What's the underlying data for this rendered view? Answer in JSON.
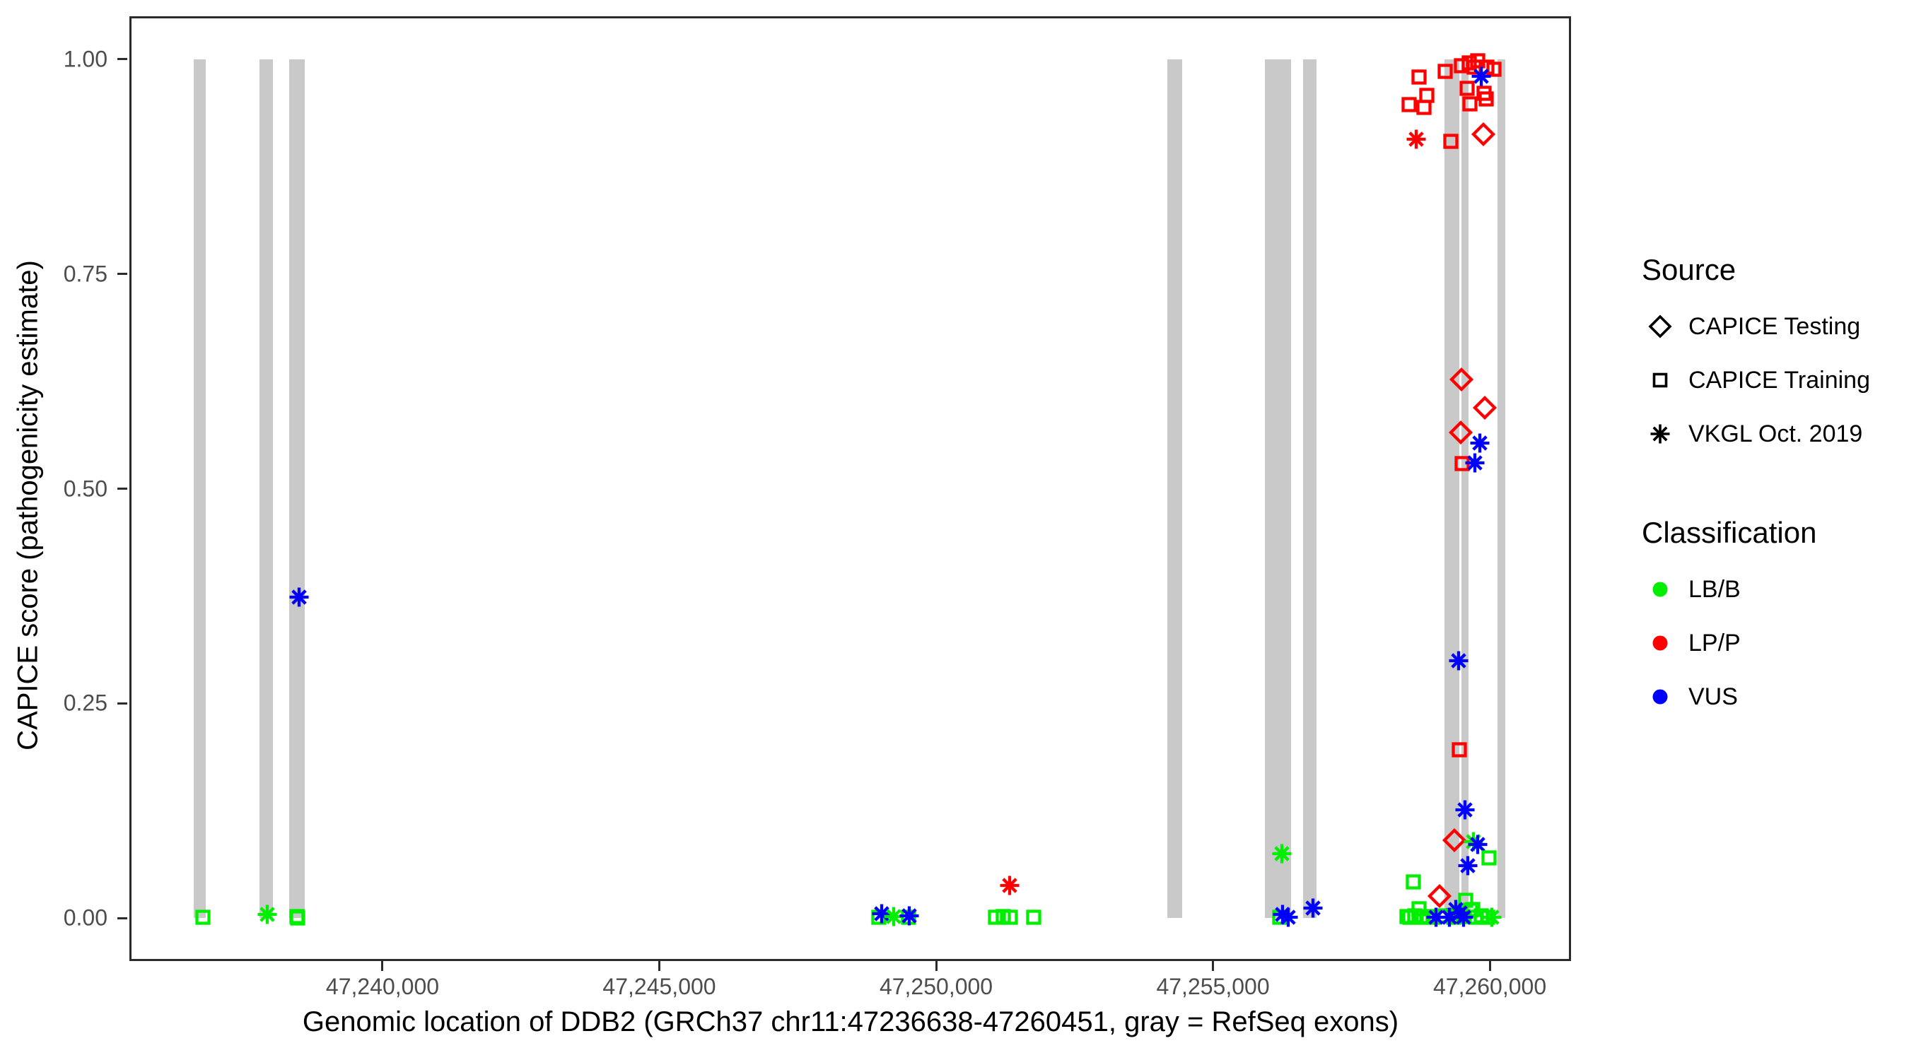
{
  "chart_data": {
    "type": "scatter",
    "title": "",
    "xlabel": "Genomic location of DDB2 (GRCh37 chr11:47236638-47260451, gray = RefSeq exons)",
    "ylabel": "CAPICE score (pathogenicity estimate)",
    "x_domain": [
      47235428,
      47261468
    ],
    "y_domain": [
      -0.05,
      1.05
    ],
    "grid": false,
    "x_ticks": [
      {
        "value": 47240000,
        "label": "47,240,000"
      },
      {
        "value": 47245000,
        "label": "47,245,000"
      },
      {
        "value": 47250000,
        "label": "47,250,000"
      },
      {
        "value": 47255000,
        "label": "47,255,000"
      },
      {
        "value": 47260000,
        "label": "47,260,000"
      }
    ],
    "y_ticks": [
      {
        "value": 0.0,
        "label": "0.00"
      },
      {
        "value": 0.25,
        "label": "0.25"
      },
      {
        "value": 0.5,
        "label": "0.50"
      },
      {
        "value": 0.75,
        "label": "0.75"
      },
      {
        "value": 1.0,
        "label": "1.00"
      }
    ],
    "exon_color": "#c9c9c9",
    "exons": [
      {
        "start": 47236590,
        "end": 47236807
      },
      {
        "start": 47237778,
        "end": 47238020
      },
      {
        "start": 47238314,
        "end": 47238595
      },
      {
        "start": 47254174,
        "end": 47254442
      },
      {
        "start": 47255937,
        "end": 47256409
      },
      {
        "start": 47256626,
        "end": 47256869
      },
      {
        "start": 47259181,
        "end": 47259449
      },
      {
        "start": 47259487,
        "end": 47259615
      },
      {
        "start": 47260138,
        "end": 47260278
      }
    ],
    "points": [
      {
        "pos": 47236757,
        "score": 0.001,
        "source": "training",
        "cls": "LB/B"
      },
      {
        "pos": 47237919,
        "score": 0.004,
        "source": "vkgl",
        "cls": "LB/B"
      },
      {
        "pos": 47238455,
        "score": 0.002,
        "source": "training",
        "cls": "LB/B"
      },
      {
        "pos": 47238470,
        "score": 0.0,
        "source": "training",
        "cls": "LB/B"
      },
      {
        "pos": 47238493,
        "score": 0.374,
        "source": "vkgl",
        "cls": "VUS"
      },
      {
        "pos": 47248964,
        "score": 0.001,
        "source": "training",
        "cls": "LB/B"
      },
      {
        "pos": 47249015,
        "score": 0.005,
        "source": "vkgl",
        "cls": "VUS"
      },
      {
        "pos": 47249232,
        "score": 0.002,
        "source": "vkgl",
        "cls": "LB/B"
      },
      {
        "pos": 47249500,
        "score": 0.001,
        "source": "training",
        "cls": "LB/B"
      },
      {
        "pos": 47249513,
        "score": 0.003,
        "source": "vkgl",
        "cls": "VUS"
      },
      {
        "pos": 47251071,
        "score": 0.001,
        "source": "training",
        "cls": "LB/B"
      },
      {
        "pos": 47251212,
        "score": 0.002,
        "source": "training",
        "cls": "LB/B"
      },
      {
        "pos": 47251339,
        "score": 0.001,
        "source": "training",
        "cls": "LB/B"
      },
      {
        "pos": 47251761,
        "score": 0.001,
        "source": "training",
        "cls": "LB/B"
      },
      {
        "pos": 47251326,
        "score": 0.038,
        "source": "vkgl",
        "cls": "LP/P"
      },
      {
        "pos": 47256243,
        "score": 0.075,
        "source": "vkgl",
        "cls": "LB/B"
      },
      {
        "pos": 47256205,
        "score": 0.001,
        "source": "training",
        "cls": "LB/B"
      },
      {
        "pos": 47256256,
        "score": 0.004,
        "source": "vkgl",
        "cls": "VUS"
      },
      {
        "pos": 47256358,
        "score": 0.001,
        "source": "vkgl",
        "cls": "VUS"
      },
      {
        "pos": 47256805,
        "score": 0.012,
        "source": "vkgl",
        "cls": "VUS"
      },
      {
        "pos": 47259487,
        "score": 0.627,
        "source": "testing",
        "cls": "LP/P"
      },
      {
        "pos": 47259908,
        "score": 0.594,
        "source": "testing",
        "cls": "LP/P"
      },
      {
        "pos": 47259474,
        "score": 0.565,
        "source": "testing",
        "cls": "LP/P"
      },
      {
        "pos": 47259819,
        "score": 0.553,
        "source": "vkgl",
        "cls": "VUS"
      },
      {
        "pos": 47259500,
        "score": 0.529,
        "source": "training",
        "cls": "LP/P"
      },
      {
        "pos": 47259729,
        "score": 0.53,
        "source": "vkgl",
        "cls": "VUS"
      },
      {
        "pos": 47259436,
        "score": 0.3,
        "source": "vkgl",
        "cls": "VUS"
      },
      {
        "pos": 47259449,
        "score": 0.196,
        "source": "training",
        "cls": "LP/P"
      },
      {
        "pos": 47259551,
        "score": 0.126,
        "source": "vkgl",
        "cls": "VUS"
      },
      {
        "pos": 47259359,
        "score": 0.091,
        "source": "testing",
        "cls": "LP/P"
      },
      {
        "pos": 47259704,
        "score": 0.089,
        "source": "vkgl",
        "cls": "LB/B"
      },
      {
        "pos": 47259781,
        "score": 0.086,
        "source": "vkgl",
        "cls": "VUS"
      },
      {
        "pos": 47259985,
        "score": 0.07,
        "source": "training",
        "cls": "LB/B"
      },
      {
        "pos": 47259602,
        "score": 0.061,
        "source": "vkgl",
        "cls": "VUS"
      },
      {
        "pos": 47258619,
        "score": 0.042,
        "source": "training",
        "cls": "LB/B"
      },
      {
        "pos": 47259091,
        "score": 0.026,
        "source": "testing",
        "cls": "LP/P"
      },
      {
        "pos": 47259564,
        "score": 0.021,
        "source": "training",
        "cls": "LB/B"
      },
      {
        "pos": 47259691,
        "score": 0.01,
        "source": "training",
        "cls": "LB/B"
      },
      {
        "pos": 47259385,
        "score": 0.01,
        "source": "vkgl",
        "cls": "VUS"
      },
      {
        "pos": 47258500,
        "score": 0.002,
        "source": "training",
        "cls": "LB/B"
      },
      {
        "pos": 47258560,
        "score": 0.001,
        "source": "training",
        "cls": "LB/B"
      },
      {
        "pos": 47258640,
        "score": 0.003,
        "source": "training",
        "cls": "LB/B"
      },
      {
        "pos": 47258720,
        "score": 0.011,
        "source": "training",
        "cls": "LB/B"
      },
      {
        "pos": 47258800,
        "score": 0.001,
        "source": "training",
        "cls": "LB/B"
      },
      {
        "pos": 47258890,
        "score": 0.002,
        "source": "training",
        "cls": "LB/B"
      },
      {
        "pos": 47258980,
        "score": 0.001,
        "source": "training",
        "cls": "LB/B"
      },
      {
        "pos": 47259200,
        "score": 0.003,
        "source": "training",
        "cls": "LB/B"
      },
      {
        "pos": 47259350,
        "score": 0.001,
        "source": "training",
        "cls": "LB/B"
      },
      {
        "pos": 47259520,
        "score": 0.002,
        "source": "training",
        "cls": "LB/B"
      },
      {
        "pos": 47259660,
        "score": 0.009,
        "source": "training",
        "cls": "LB/B"
      },
      {
        "pos": 47259760,
        "score": 0.001,
        "source": "training",
        "cls": "LB/B"
      },
      {
        "pos": 47259850,
        "score": 0.003,
        "source": "training",
        "cls": "LB/B"
      },
      {
        "pos": 47259960,
        "score": 0.001,
        "source": "training",
        "cls": "LB/B"
      },
      {
        "pos": 47259030,
        "score": 0.001,
        "source": "vkgl",
        "cls": "VUS"
      },
      {
        "pos": 47259270,
        "score": 0.001,
        "source": "vkgl",
        "cls": "VUS"
      },
      {
        "pos": 47259460,
        "score": 0.006,
        "source": "vkgl",
        "cls": "VUS"
      },
      {
        "pos": 47259530,
        "score": 0.001,
        "source": "vkgl",
        "cls": "VUS"
      },
      {
        "pos": 47260040,
        "score": 0.001,
        "source": "vkgl",
        "cls": "LB/B"
      },
      {
        "pos": 47258542,
        "score": 0.947,
        "source": "training",
        "cls": "LP/P"
      },
      {
        "pos": 47258810,
        "score": 0.944,
        "source": "training",
        "cls": "LP/P"
      },
      {
        "pos": 47258861,
        "score": 0.958,
        "source": "training",
        "cls": "LP/P"
      },
      {
        "pos": 47258721,
        "score": 0.979,
        "source": "training",
        "cls": "LP/P"
      },
      {
        "pos": 47259193,
        "score": 0.986,
        "source": "training",
        "cls": "LP/P"
      },
      {
        "pos": 47259487,
        "score": 0.992,
        "source": "training",
        "cls": "LP/P"
      },
      {
        "pos": 47259627,
        "score": 0.996,
        "source": "training",
        "cls": "LP/P"
      },
      {
        "pos": 47259781,
        "score": 0.998,
        "source": "training",
        "cls": "LP/P"
      },
      {
        "pos": 47259717,
        "score": 0.991,
        "source": "training",
        "cls": "LP/P"
      },
      {
        "pos": 47259946,
        "score": 0.991,
        "source": "training",
        "cls": "LP/P"
      },
      {
        "pos": 47260074,
        "score": 0.988,
        "source": "training",
        "cls": "LP/P"
      },
      {
        "pos": 47259589,
        "score": 0.966,
        "source": "training",
        "cls": "LP/P"
      },
      {
        "pos": 47259895,
        "score": 0.96,
        "source": "training",
        "cls": "LP/P"
      },
      {
        "pos": 47259640,
        "score": 0.948,
        "source": "training",
        "cls": "LP/P"
      },
      {
        "pos": 47259933,
        "score": 0.954,
        "source": "training",
        "cls": "LP/P"
      },
      {
        "pos": 47259844,
        "score": 0.98,
        "source": "vkgl",
        "cls": "VUS"
      },
      {
        "pos": 47258670,
        "score": 0.907,
        "source": "vkgl",
        "cls": "LP/P"
      },
      {
        "pos": 47259295,
        "score": 0.904,
        "source": "training",
        "cls": "LP/P"
      },
      {
        "pos": 47259882,
        "score": 0.913,
        "source": "testing",
        "cls": "LP/P"
      }
    ]
  },
  "legend": {
    "source": {
      "title": "Source",
      "items": [
        {
          "shape": "diamond",
          "label": "CAPICE Testing",
          "source_key": "testing"
        },
        {
          "shape": "square",
          "label": "CAPICE Training",
          "source_key": "training"
        },
        {
          "shape": "asterisk",
          "label": "VKGL Oct. 2019",
          "source_key": "vkgl"
        }
      ]
    },
    "classification": {
      "title": "Classification",
      "items": [
        {
          "label": "LB/B",
          "color": "#00ee00"
        },
        {
          "label": "LP/P",
          "color": "#ff0000"
        },
        {
          "label": "VUS",
          "color": "#0000ff"
        }
      ]
    }
  },
  "palette": {
    "LB/B": "#00ee00",
    "LP/P": "#ff0000",
    "VUS": "#0000ff",
    "legend_glyph": "#000000",
    "axis_text": "#4d4d4d",
    "panel_border": "#2b2b2b",
    "exon": "#c9c9c9"
  }
}
